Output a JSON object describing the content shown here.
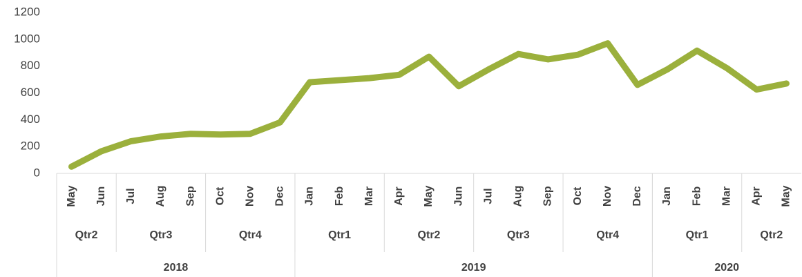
{
  "chart_data": {
    "type": "line",
    "categories": [
      "May",
      "Jun",
      "Jul",
      "Aug",
      "Sep",
      "Oct",
      "Nov",
      "Dec",
      "Jan",
      "Feb",
      "Mar",
      "Apr",
      "May",
      "Jun",
      "Jul",
      "Aug",
      "Sep",
      "Oct",
      "Nov",
      "Dec",
      "Jan",
      "Feb",
      "Mar",
      "Apr",
      "May"
    ],
    "quarter_labels": [
      "Qtr2",
      null,
      "Qtr3",
      null,
      null,
      "Qtr4",
      null,
      null,
      "Qtr1",
      null,
      null,
      "Qtr2",
      null,
      null,
      "Qtr3",
      null,
      null,
      "Qtr4",
      null,
      null,
      "Qtr1",
      null,
      null,
      "Qtr2",
      null
    ],
    "year_labels": [
      "2018",
      null,
      null,
      null,
      null,
      null,
      null,
      null,
      "2019",
      null,
      null,
      null,
      null,
      null,
      null,
      null,
      null,
      null,
      null,
      null,
      "2020",
      null,
      null,
      null,
      null
    ],
    "series": [
      {
        "color": "#9bb03c",
        "values": [
          50,
          165,
          240,
          275,
          295,
          290,
          295,
          380,
          680,
          695,
          710,
          735,
          870,
          650,
          775,
          890,
          850,
          885,
          970,
          660,
          775,
          915,
          785,
          625,
          670
        ]
      }
    ],
    "ylim": [
      0,
      1200
    ],
    "yticks": [
      0,
      200,
      400,
      600,
      800,
      1000,
      1200
    ]
  }
}
